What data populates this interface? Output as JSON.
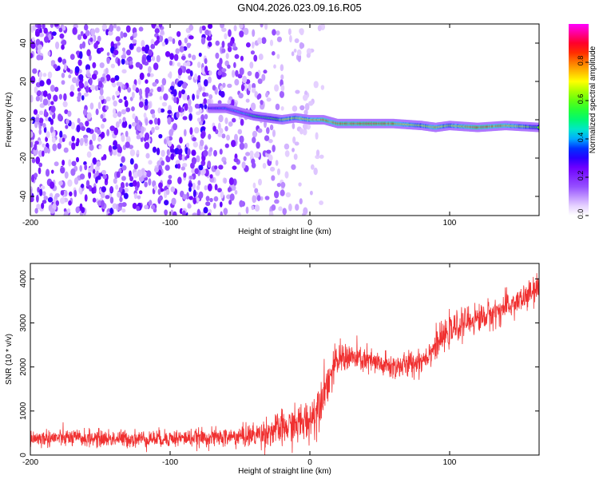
{
  "title": "GN04.2026.023.09.16.R05",
  "chart_data": [
    {
      "type": "heatmap",
      "xlabel": "Height of straight line (km)",
      "ylabel": "Frequency (Hz)",
      "xlim": [
        -200,
        164
      ],
      "ylim": [
        -50,
        50
      ],
      "xticks": [
        -200,
        -100,
        0,
        100
      ],
      "yticks": [
        -40,
        -20,
        0,
        20,
        40
      ],
      "xtick_labels": [
        "-200",
        "-100",
        "0",
        "100"
      ],
      "ytick_labels": [
        "-40",
        "-20",
        "0",
        "20",
        "40"
      ],
      "colorbar": {
        "label": "Normalized spectral amplitude",
        "range": [
          0,
          1
        ],
        "ticks": [
          0.0,
          0.2,
          0.4,
          0.6,
          0.8
        ],
        "tick_labels": [
          "0.0",
          "0.2",
          "0.4",
          "0.6",
          "0.8"
        ],
        "colors": [
          "#ffffff",
          "#7b00ff",
          "#0000ff",
          "#00ffff",
          "#00ff00",
          "#ffff00",
          "#ff8000",
          "#ff0000",
          "#ff00ff"
        ]
      },
      "ridge": {
        "description_values": "frequency of peak amplitude vs height",
        "x": [
          -70,
          -60,
          -50,
          -40,
          -30,
          -20,
          -10,
          0,
          10,
          20,
          40,
          60,
          80,
          90,
          100,
          120,
          140,
          164
        ],
        "y": [
          6,
          6,
          4,
          2,
          1,
          0,
          1,
          0,
          0,
          -2,
          -2,
          -2,
          -3,
          -4,
          -3,
          -4,
          -3,
          -4
        ],
        "amplitude": [
          0.35,
          0.4,
          0.45,
          0.55,
          0.6,
          0.7,
          0.75,
          0.8,
          0.85,
          0.9,
          0.95,
          0.9,
          0.7,
          0.85,
          0.7,
          0.95,
          0.85,
          0.6
        ]
      },
      "noise_region": {
        "x": [
          -200,
          -30
        ],
        "amplitude": [
          0.0,
          0.25
        ]
      }
    },
    {
      "type": "line",
      "xlabel": "Height of straight line (km)",
      "ylabel": "SNR (10 * v/v)",
      "xlim": [
        -200,
        164
      ],
      "ylim": [
        0,
        4350
      ],
      "xticks": [
        -200,
        -100,
        0,
        100
      ],
      "yticks": [
        0,
        1000,
        2000,
        3000,
        4000
      ],
      "xtick_labels": [
        "-200",
        "-100",
        "0",
        "100"
      ],
      "ytick_labels": [
        "0",
        "1000",
        "2000",
        "3000",
        "4000"
      ],
      "color": "#f03030",
      "series": [
        {
          "name": "SNR",
          "x": [
            -200,
            -180,
            -160,
            -140,
            -120,
            -100,
            -80,
            -60,
            -50,
            -40,
            -30,
            -20,
            -10,
            0,
            5,
            10,
            15,
            20,
            25,
            30,
            40,
            50,
            60,
            70,
            80,
            85,
            90,
            100,
            110,
            120,
            130,
            140,
            150,
            160,
            164
          ],
          "y": [
            380,
            390,
            380,
            370,
            370,
            380,
            390,
            400,
            420,
            450,
            520,
            600,
            680,
            800,
            1050,
            1500,
            1800,
            2150,
            2250,
            2200,
            2150,
            2050,
            2000,
            2050,
            2150,
            2300,
            2500,
            2800,
            3000,
            3100,
            3200,
            3350,
            3500,
            3700,
            3800
          ],
          "noise": [
            180,
            180,
            180,
            180,
            180,
            180,
            180,
            200,
            220,
            260,
            320,
            360,
            400,
            450,
            500,
            450,
            400,
            350,
            320,
            300,
            280,
            280,
            280,
            280,
            280,
            280,
            300,
            300,
            300,
            300,
            300,
            300,
            300,
            300,
            300
          ]
        }
      ]
    }
  ]
}
